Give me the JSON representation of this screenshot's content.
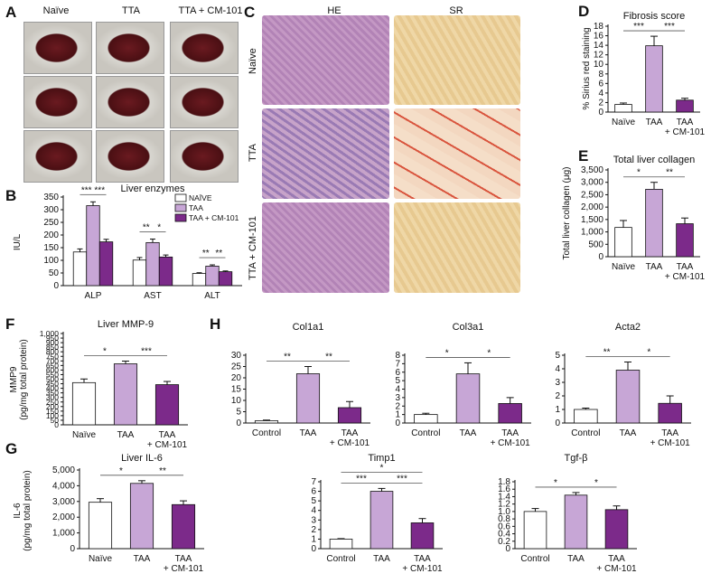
{
  "panels": {
    "A": {
      "letter": "A",
      "columns": [
        "Naïve",
        "TTA",
        "TTA + CM-101"
      ]
    },
    "C": {
      "letter": "C",
      "columns": [
        "HE",
        "SR"
      ],
      "rows": [
        "Naïve",
        "TTA",
        "TTA + CM-101"
      ]
    }
  },
  "colors": {
    "white": "#ffffff",
    "lilac": "#c7a6d6",
    "purple": "#7c2a8a",
    "liver": "#5a1418",
    "he": "#b88ab8",
    "sr": "#e8c9a0",
    "sr_red": "#d9453a"
  },
  "chart_data": [
    {
      "id": "B",
      "type": "bar",
      "letter": "B",
      "title": "Liver enzymes",
      "ylabel": "IU/L",
      "ylim": [
        0,
        350
      ],
      "yticks": [
        "0",
        "50",
        "100",
        "150",
        "200",
        "250",
        "300",
        "350"
      ],
      "categories": [
        "ALP",
        "AST",
        "ALT"
      ],
      "series": [
        {
          "name": "NAÏVE",
          "values": [
            133,
            101,
            48
          ]
        },
        {
          "name": "TAA",
          "values": [
            316,
            170,
            77
          ]
        },
        {
          "name": "TAA + CM-101",
          "values": [
            173,
            113,
            55
          ]
        }
      ],
      "errors": [
        [
          12,
          10,
          3
        ],
        [
          15,
          14,
          5
        ],
        [
          10,
          8,
          3
        ]
      ],
      "sig": [
        {
          "label": "***",
          "cat": 0,
          "a": 0,
          "b": 1
        },
        {
          "label": "***",
          "cat": 0,
          "a": 1,
          "b": 2
        },
        {
          "label": "**",
          "cat": 1,
          "a": 0,
          "b": 1
        },
        {
          "label": "*",
          "cat": 1,
          "a": 1,
          "b": 2
        },
        {
          "label": "**",
          "cat": 2,
          "a": 0,
          "b": 1
        },
        {
          "label": "**",
          "cat": 2,
          "a": 1,
          "b": 2
        }
      ]
    },
    {
      "id": "D",
      "type": "bar",
      "letter": "D",
      "title": "Fibrosis score",
      "ylabel": "% Sirius red staining",
      "ylim": [
        0,
        18
      ],
      "yticks": [
        "0",
        "2",
        "4",
        "6",
        "8",
        "10",
        "12",
        "14",
        "16",
        "18"
      ],
      "categories": [
        "Naïve",
        "TAA",
        "TAA\n+ CM-101"
      ],
      "values": [
        1.6,
        13.9,
        2.5
      ],
      "errors": [
        0.3,
        2,
        0.4
      ],
      "sig": [
        {
          "label": "***",
          "a": 0,
          "b": 1
        },
        {
          "label": "***",
          "a": 1,
          "b": 2
        }
      ]
    },
    {
      "id": "E",
      "type": "bar",
      "letter": "E",
      "title": "Total liver collagen",
      "ylabel": "Total liver collagen (μg)",
      "ylim": [
        0,
        3500
      ],
      "yticks": [
        "0",
        "500",
        "1,000",
        "1,500",
        "2,000",
        "2,500",
        "3,000",
        "3,500"
      ],
      "categories": [
        "Naïve",
        "TAA",
        "TAA\n+ CM-101"
      ],
      "values": [
        1180,
        2720,
        1330
      ],
      "errors": [
        280,
        280,
        230
      ],
      "sig": [
        {
          "label": "*",
          "a": 0,
          "b": 1
        },
        {
          "label": "**",
          "a": 1,
          "b": 2
        }
      ]
    },
    {
      "id": "F",
      "type": "bar",
      "letter": "F",
      "title": "Liver MMP-9",
      "ylabel": "MMP9\n(pg/mg total protein)",
      "ylim": [
        0,
        1000
      ],
      "yticks": [
        "0",
        "50",
        "100",
        "150",
        "200",
        "250",
        "300",
        "350",
        "400",
        "450",
        "500",
        "550",
        "600",
        "650",
        "700",
        "750",
        "800",
        "850",
        "900",
        "950",
        "1,000"
      ],
      "categories": [
        "Naïve",
        "TAA",
        "TAA\n+ CM-101"
      ],
      "values": [
        462,
        668,
        440
      ],
      "errors": [
        40,
        30,
        35
      ],
      "sig": [
        {
          "label": "*",
          "a": 0,
          "b": 1
        },
        {
          "label": "***",
          "a": 1,
          "b": 2
        }
      ]
    },
    {
      "id": "H1",
      "type": "bar",
      "letter": "H",
      "title": "Col1a1",
      "ylim": [
        0,
        30
      ],
      "yticks": [
        "0",
        "5",
        "10",
        "15",
        "20",
        "25",
        "30"
      ],
      "categories": [
        "Control",
        "TAA",
        "TAA\n+ CM-101"
      ],
      "values": [
        1,
        21.8,
        6.8
      ],
      "errors": [
        0.3,
        3.2,
        2.7
      ],
      "sig": [
        {
          "label": "**",
          "a": 0,
          "b": 1
        },
        {
          "label": "**",
          "a": 1,
          "b": 2
        }
      ]
    },
    {
      "id": "H2",
      "type": "bar",
      "title": "Col3a1",
      "ylim": [
        0,
        8
      ],
      "yticks": [
        "0",
        "1",
        "2",
        "3",
        "4",
        "5",
        "6",
        "7",
        "8"
      ],
      "categories": [
        "Control",
        "TAA",
        "TAA\n+ CM-101"
      ],
      "values": [
        1,
        5.8,
        2.3
      ],
      "errors": [
        0.15,
        1.3,
        0.7
      ],
      "sig": [
        {
          "label": "*",
          "a": 0,
          "b": 1
        },
        {
          "label": "*",
          "a": 1,
          "b": 2
        }
      ]
    },
    {
      "id": "H3",
      "type": "bar",
      "title": "Acta2",
      "ylim": [
        0,
        5
      ],
      "yticks": [
        "0",
        "1",
        "2",
        "3",
        "4",
        "5"
      ],
      "categories": [
        "Control",
        "TAA",
        "TAA\n+ CM-101"
      ],
      "values": [
        1,
        3.9,
        1.45
      ],
      "errors": [
        0.1,
        0.6,
        0.55
      ],
      "sig": [
        {
          "label": "**",
          "a": 0,
          "b": 1
        },
        {
          "label": "*",
          "a": 1,
          "b": 2
        }
      ]
    },
    {
      "id": "G",
      "type": "bar",
      "letter": "G",
      "title": "Liver IL-6",
      "ylabel": "IL-6\n(pg/mg total protein)",
      "ylim": [
        0,
        5000
      ],
      "yticks": [
        "0",
        "1,000",
        "2,000",
        "3,000",
        "4,000",
        "5,000"
      ],
      "categories": [
        "Naïve",
        "TAA",
        "TAA\n+ CM-101"
      ],
      "values": [
        2950,
        4150,
        2800
      ],
      "errors": [
        230,
        170,
        240
      ],
      "sig": [
        {
          "label": "*",
          "a": 0,
          "b": 1
        },
        {
          "label": "**",
          "a": 1,
          "b": 2
        }
      ]
    },
    {
      "id": "G2",
      "type": "bar",
      "title": "Timp1",
      "ylim": [
        0,
        7
      ],
      "yticks": [
        "0",
        "1",
        "2",
        "3",
        "4",
        "5",
        "6",
        "7"
      ],
      "categories": [
        "Control",
        "TAA",
        "TAA\n+ CM-101"
      ],
      "values": [
        1,
        6,
        2.7
      ],
      "errors": [
        0.05,
        0.3,
        0.45
      ],
      "sig": [
        {
          "label": "***",
          "a": 0,
          "b": 1
        },
        {
          "label": "***",
          "a": 1,
          "b": 2
        },
        {
          "label": "*",
          "a": 0,
          "b": 2,
          "top": true
        }
      ]
    },
    {
      "id": "G3",
      "type": "bar",
      "title": "Tgf-β",
      "ylim": [
        0,
        1.8
      ],
      "yticks": [
        "0",
        "0.2",
        "0.4",
        "0.6",
        "0.8",
        "1.0",
        "1.2",
        "1.4",
        "1.6",
        "1.8"
      ],
      "categories": [
        "Control",
        "TAA",
        "TAA\n+ CM-101"
      ],
      "values": [
        1,
        1.44,
        1.05
      ],
      "errors": [
        0.08,
        0.07,
        0.1
      ],
      "sig": [
        {
          "label": "*",
          "a": 0,
          "b": 1
        },
        {
          "label": "*",
          "a": 1,
          "b": 2
        }
      ]
    }
  ]
}
